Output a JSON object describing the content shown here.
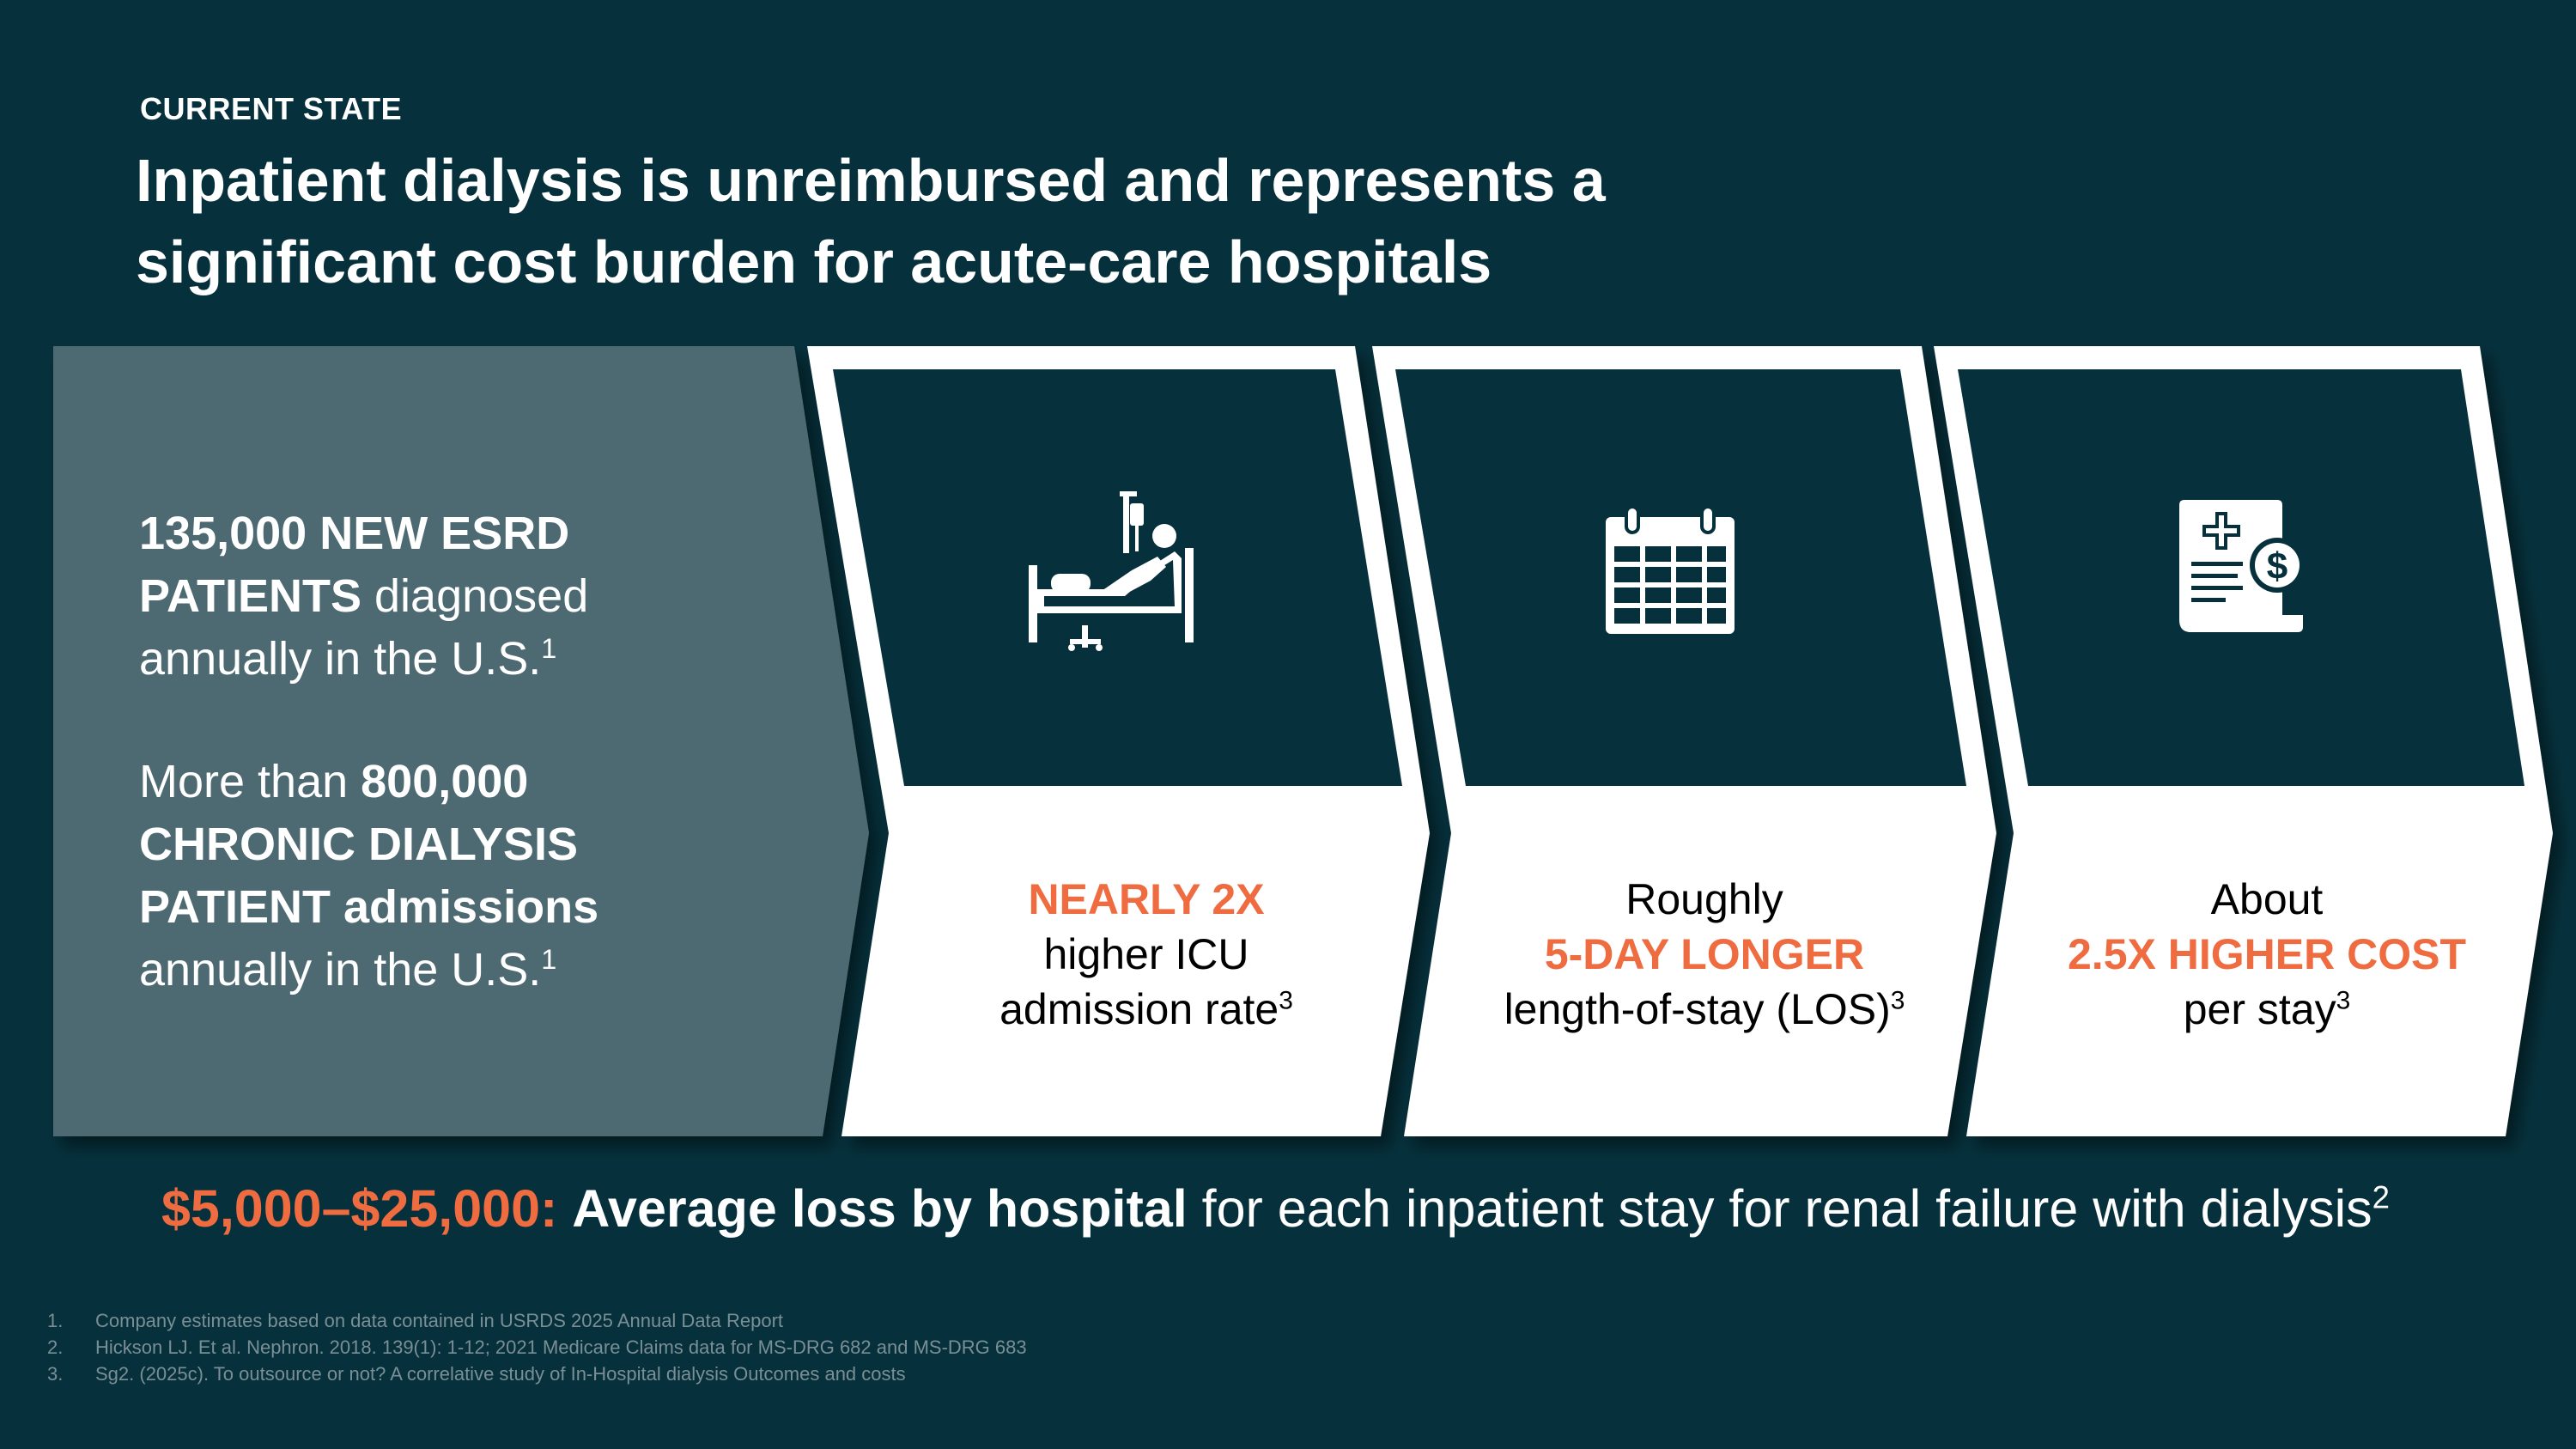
{
  "header": {
    "eyebrow": "CURRENT STATE",
    "title_line1": "Inpatient dialysis is unreimbursed and represents a",
    "title_line2": "significant cost burden for acute-care hospitals"
  },
  "left_panel": {
    "stat1_bold_a": "135,000 NEW ESRD",
    "stat1_bold_b": "PATIENTS",
    "stat1_text_a": " diagnosed",
    "stat1_text_b": "annually in the U.S.",
    "stat1_ref": "1",
    "stat2_text_a": "More than ",
    "stat2_bold_a": "800,000",
    "stat2_bold_b": "CHRONIC DIALYSIS",
    "stat2_bold_c": "PATIENT admissions",
    "stat2_text_b": "annually in the U.S.",
    "stat2_ref": "1"
  },
  "cards": [
    {
      "icon": "hospital-bed-icon",
      "highlight": "NEARLY 2X",
      "line2": "higher ICU",
      "line3": "admission rate",
      "ref": "3"
    },
    {
      "icon": "calendar-icon",
      "line1": "Roughly",
      "highlight": "5-DAY LONGER",
      "line3": "length-of-stay (LOS)",
      "ref": "3"
    },
    {
      "icon": "medical-bill-icon",
      "line1": "About",
      "highlight": "2.5X HIGHER COST",
      "line3": "per stay",
      "ref": "3"
    }
  ],
  "summary": {
    "amount": "$5,000–$25,000:",
    "bold": "Average loss by hospital",
    "text": " for each inpatient stay for renal failure with dialysis",
    "ref": "2"
  },
  "footnotes": [
    {
      "num": "1.",
      "text": "Company estimates based on data contained in USRDS 2025 Annual Data Report"
    },
    {
      "num": "2.",
      "text": "Hickson LJ. Et al. Nephron. 2018. 139(1): 1-12; 2021 Medicare Claims data for MS-DRG 682 and MS-DRG 683"
    },
    {
      "num": "3.",
      "text": "Sg2. (2025c). To outsource or not? A correlative study of In-Hospital dialysis Outcomes and costs"
    }
  ],
  "colors": {
    "background": "#06313c",
    "panel": "#4d6b73",
    "card_dark": "#06313c",
    "card_light": "#ffffff",
    "accent": "#ef6c41"
  }
}
